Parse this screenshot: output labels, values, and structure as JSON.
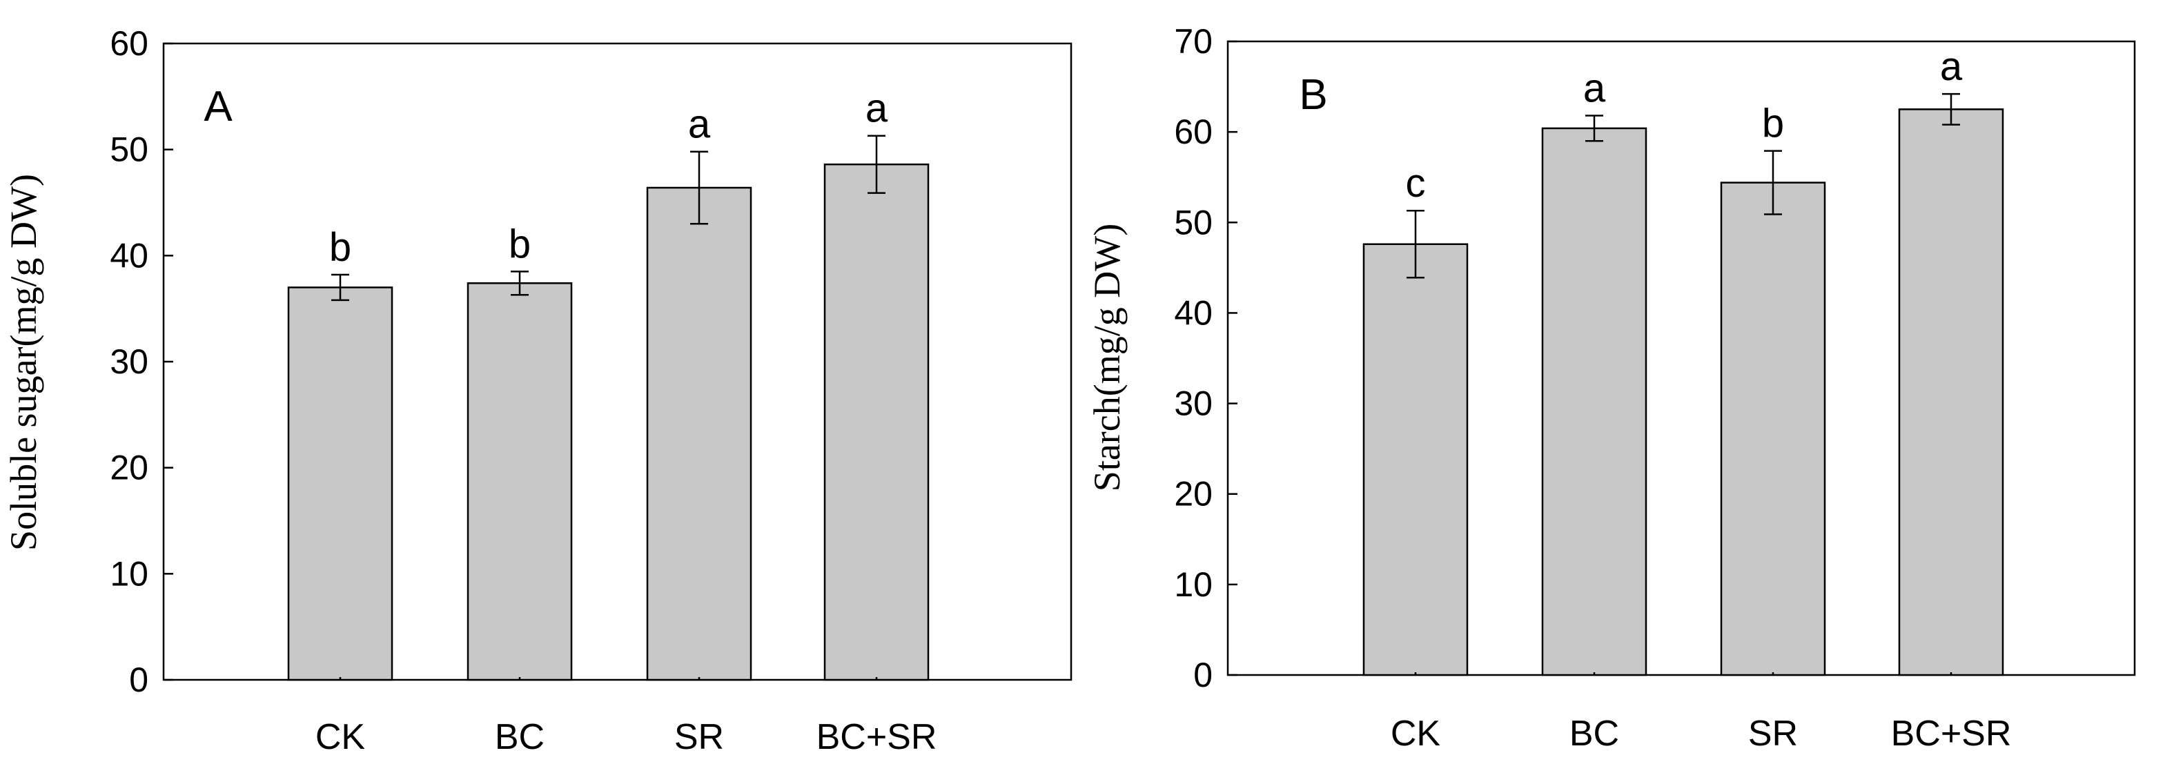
{
  "chart_data": [
    {
      "type": "bar",
      "panel_label": "A",
      "title": "",
      "xlabel": "",
      "ylabel": "Soluble sugar(mg/g DW)",
      "ylim": [
        0,
        60
      ],
      "yticks": [
        0,
        10,
        20,
        30,
        40,
        50,
        60
      ],
      "ytick_labels": [
        "0",
        "10",
        "20",
        "30",
        "40",
        "50",
        "60"
      ],
      "categories": [
        "CK",
        "BC",
        "SR",
        "BC+SR"
      ],
      "values": [
        37.0,
        37.4,
        46.4,
        48.6
      ],
      "errors": [
        1.2,
        1.1,
        3.4,
        2.7
      ],
      "significance": [
        "b",
        "b",
        "a",
        "a"
      ],
      "bar_color": "#c8c8c8",
      "grid": false
    },
    {
      "type": "bar",
      "panel_label": "B",
      "title": "",
      "xlabel": "",
      "ylabel": "Starch(mg/g DW)",
      "ylim": [
        0,
        70
      ],
      "yticks": [
        0,
        10,
        20,
        30,
        40,
        50,
        60,
        70
      ],
      "ytick_labels": [
        "0",
        "10",
        "20",
        "30",
        "40",
        "50",
        "60",
        "70"
      ],
      "categories": [
        "CK",
        "BC",
        "SR",
        "BC+SR"
      ],
      "values": [
        47.6,
        60.4,
        54.4,
        62.5
      ],
      "errors": [
        3.7,
        1.4,
        3.5,
        1.7
      ],
      "significance": [
        "c",
        "a",
        "b",
        "a"
      ],
      "bar_color": "#c8c8c8",
      "grid": false
    }
  ]
}
